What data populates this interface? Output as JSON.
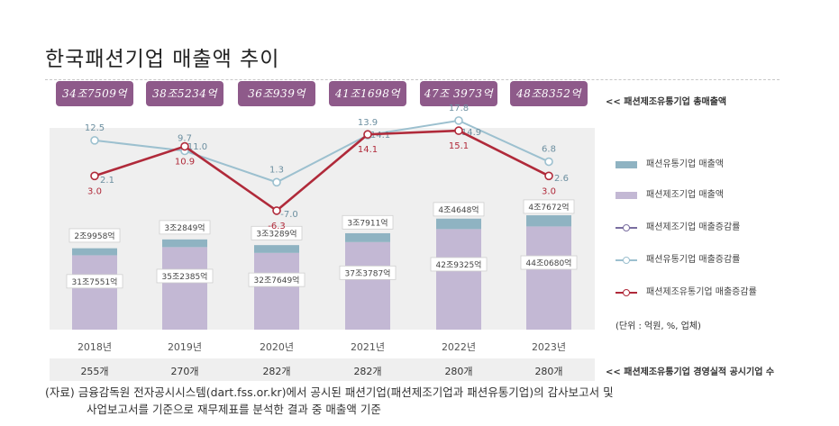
{
  "title": "한국패션기업 매출액 추이",
  "totals_label": "<< 패션제조유통기업 총매출액",
  "count_label": "<< 패션제조유통기업 경영실적 공시기업 수",
  "unit_note": "(단위 : 억원, %, 업체)",
  "source_line1": "(자료) 금융감독원 전자공시시스템(dart.fss.or.kr)에서 공시된 패션기업(패션제조기업과 패션유통기업)의 감사보고서 및",
  "source_line2": "사업보고서를 기준으로 재무제표를 분석한 결과 중 매출액 기준",
  "legend": [
    {
      "label": "패션유통기업 매출액",
      "color": "#8fb3c2",
      "kind": "bar"
    },
    {
      "label": "패션제조기업 매출액",
      "color": "#c3b8d4",
      "kind": "bar"
    },
    {
      "label": "패션제조기업 매출증감률",
      "color": "#7a6ea0",
      "kind": "line"
    },
    {
      "label": "패션유통기업 매출증감률",
      "color": "#9cc0cf",
      "kind": "line"
    },
    {
      "label": "패션제조유통기업 매출증감률",
      "color": "#b02a3a",
      "kind": "line"
    }
  ],
  "chart_data": {
    "type": "bar",
    "categories": [
      "2018년",
      "2019년",
      "2020년",
      "2021년",
      "2022년",
      "2023년"
    ],
    "totals": [
      "34조7509억",
      "38조5234억",
      "36조939억",
      "41조1698억",
      "47조 3973억",
      "48조8352억"
    ],
    "company_counts": [
      "255개",
      "270개",
      "282개",
      "282개",
      "280개",
      "280개"
    ],
    "series": [
      {
        "name": "패션제조기업 매출액",
        "kind": "bar",
        "values": [
          317551,
          352385,
          327649,
          373787,
          429325,
          440680
        ],
        "labels": [
          "31조7551억",
          "35조2385억",
          "32조7649억",
          "37조3787억",
          "42조9325억",
          "44조0680억"
        ]
      },
      {
        "name": "패션유통기업 매출액",
        "kind": "bar",
        "values": [
          29958,
          32849,
          33289,
          37911,
          44648,
          47672
        ],
        "labels": [
          "2조9958억",
          "3조2849억",
          "3조3289억",
          "3조7911억",
          "4조4648억",
          "4조7672억"
        ]
      },
      {
        "name": "패션유통기업 매출증감률",
        "kind": "line",
        "values": [
          12.5,
          9.7,
          1.3,
          13.9,
          17.8,
          6.8
        ],
        "labels": [
          "12.5",
          "9.7",
          "1.3",
          "13.9",
          "17.8",
          "6.8"
        ]
      },
      {
        "name": "패션제조기업 매출증감률",
        "kind": "line",
        "values": [
          2.1,
          11.0,
          -7.0,
          14.1,
          14.9,
          2.6
        ],
        "labels": [
          "2.1",
          "11.0",
          "-7.0",
          "14.1",
          "14.9",
          "2.6"
        ]
      },
      {
        "name": "패션제조유통기업 매출증감률",
        "kind": "line",
        "values": [
          3.0,
          10.9,
          -6.3,
          14.1,
          15.1,
          3.0
        ],
        "labels": [
          "3.0",
          "10.9",
          "-6.3",
          "14.1",
          "15.1",
          "3.0"
        ]
      }
    ],
    "y_sales_range": [
      0,
      1000000
    ],
    "y_rate_range": [
      -15,
      25
    ],
    "grid": false,
    "legend_position": "right"
  }
}
